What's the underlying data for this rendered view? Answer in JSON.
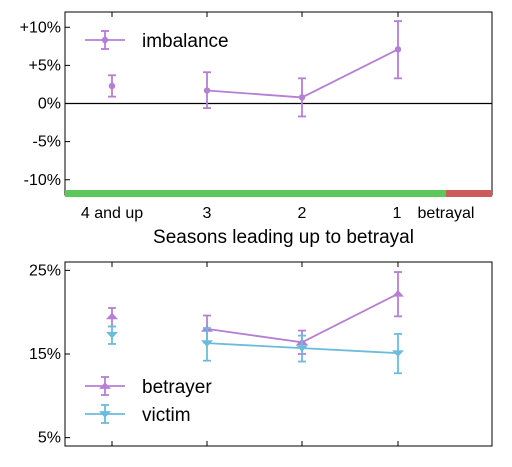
{
  "chart_data": [
    {
      "type": "line",
      "categories": [
        "4 and up",
        "3",
        "2",
        "1",
        "betrayal"
      ],
      "xlabel": "Seasons leading up to betrayal",
      "ylabel": "",
      "ylim": [
        -12,
        12
      ],
      "yticks": [
        -10,
        -5,
        0,
        5,
        10
      ],
      "ytick_labels": [
        "-10%",
        "-5%",
        "0%",
        "+5%",
        "+10%"
      ],
      "zero_line": true,
      "legend_position": "top-left",
      "bottom_band": [
        {
          "from": "4 and up",
          "to": "1",
          "color": "#5cc85c"
        },
        {
          "from": "1",
          "to": "betrayal",
          "color": "#cc5c5c"
        }
      ],
      "series": [
        {
          "name": "imbalance",
          "color": "#b57fd4",
          "marker": "circle",
          "points": [
            {
              "x": "4 and up",
              "y": 2.3,
              "err_low": 0.9,
              "err_high": 3.7,
              "connected": false
            },
            {
              "x": "3",
              "y": 1.7,
              "err_low": -0.6,
              "err_high": 4.1,
              "connected": true
            },
            {
              "x": "2",
              "y": 0.8,
              "err_low": -1.7,
              "err_high": 3.3,
              "connected": true
            },
            {
              "x": "1",
              "y": 7.1,
              "err_low": 3.3,
              "err_high": 10.8,
              "connected": true
            }
          ]
        }
      ]
    },
    {
      "type": "line",
      "categories": [
        "4 and up",
        "3",
        "2",
        "1",
        "betrayal"
      ],
      "xlabel": "",
      "ylabel": "",
      "ylim": [
        4,
        26
      ],
      "yticks": [
        5,
        15,
        25
      ],
      "ytick_labels": [
        "5%",
        "15%",
        "25%"
      ],
      "legend_position": "bottom-left",
      "series": [
        {
          "name": "betrayer",
          "color": "#b57fd4",
          "marker": "triangle-up",
          "points": [
            {
              "x": "4 and up",
              "y": 19.5,
              "err_low": 18.3,
              "err_high": 20.5,
              "connected": false
            },
            {
              "x": "3",
              "y": 18.0,
              "err_low": 16.4,
              "err_high": 19.6,
              "connected": true
            },
            {
              "x": "2",
              "y": 16.4,
              "err_low": 15.0,
              "err_high": 17.8,
              "connected": true
            },
            {
              "x": "1",
              "y": 22.2,
              "err_low": 19.5,
              "err_high": 24.8,
              "connected": true
            }
          ]
        },
        {
          "name": "victim",
          "color": "#6bbcdc",
          "marker": "triangle-down",
          "points": [
            {
              "x": "4 and up",
              "y": 17.3,
              "err_low": 16.2,
              "err_high": 18.3,
              "connected": false
            },
            {
              "x": "3",
              "y": 16.3,
              "err_low": 14.2,
              "err_high": 18.1,
              "connected": true
            },
            {
              "x": "2",
              "y": 15.7,
              "err_low": 14.1,
              "err_high": 17.2,
              "connected": true
            },
            {
              "x": "1",
              "y": 15.1,
              "err_low": 12.7,
              "err_high": 17.4,
              "connected": true
            }
          ]
        }
      ]
    }
  ]
}
